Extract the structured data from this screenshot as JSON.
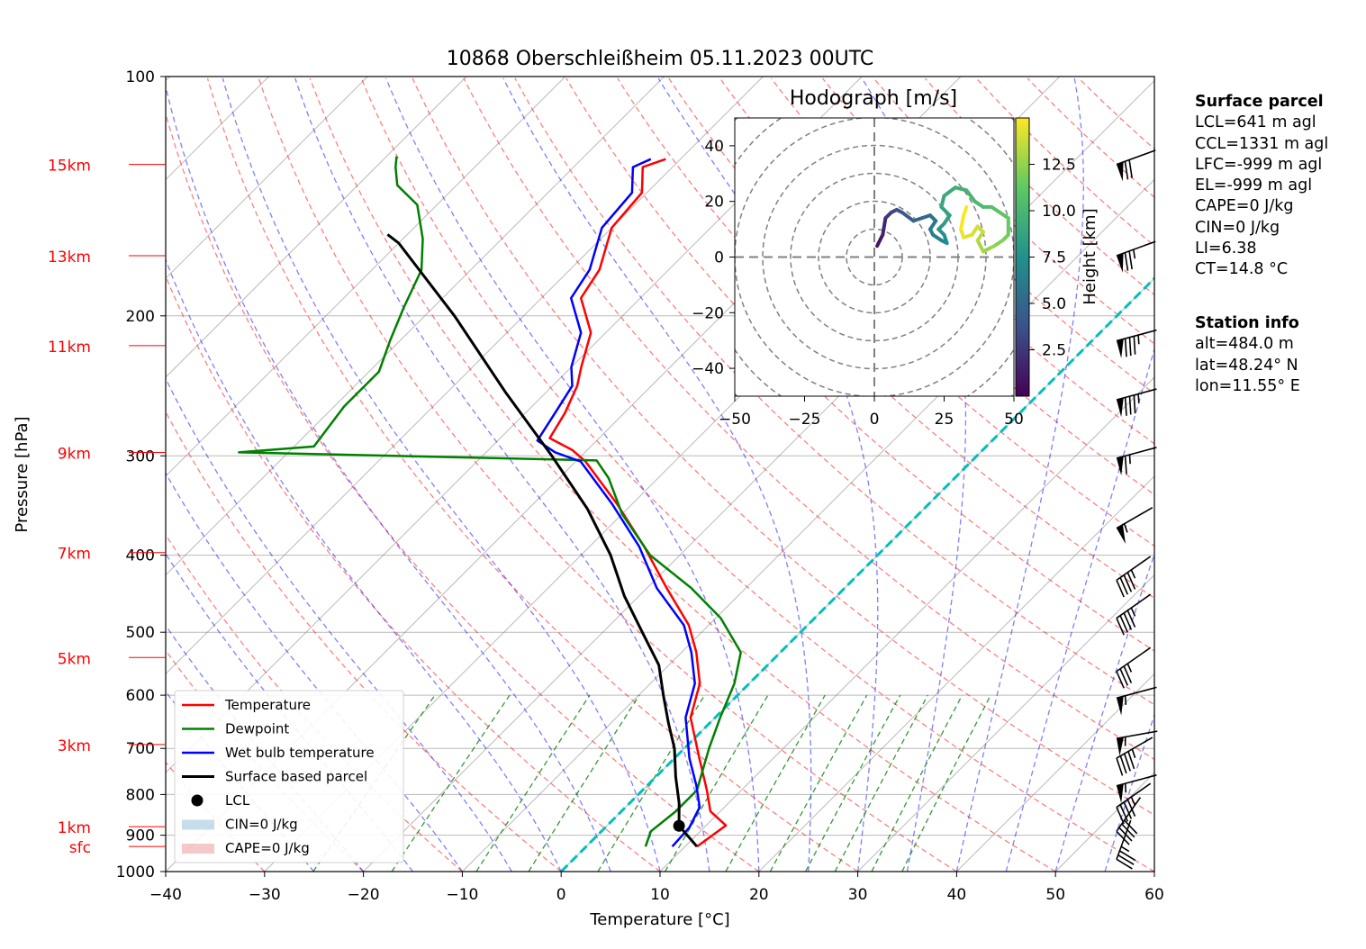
{
  "title": "10868 Oberschleißheim 05.11.2023 00UTC",
  "colors": {
    "temperature": "#ff0000",
    "dewpoint": "#008000",
    "wetbulb": "#0000ff",
    "parcel": "#000000",
    "dry_adiabat": "#ff0000",
    "moist_adiabat": "#0000ff",
    "mixing_ratio": "#008000",
    "isotherm": "#808080",
    "freezing": "#00bfbf",
    "height_label": "#ff0000"
  },
  "chart_data": [
    {
      "type": "line",
      "title": "10868 Oberschleißheim 05.11.2023 00UTC",
      "xlabel": "Temperature [°C]",
      "ylabel": "Pressure [hPa]",
      "xlim": [
        -40,
        60
      ],
      "ylim": [
        1000,
        100
      ],
      "y_scale": "log",
      "skew": true,
      "grid": true,
      "legend_position": "lower-left",
      "x_ticks": [
        "−40",
        "−30",
        "−20",
        "−10",
        "0",
        "10",
        "20",
        "30",
        "40",
        "50",
        "60"
      ],
      "y_ticks": [
        "100",
        "200",
        "300",
        "400",
        "500",
        "600",
        "700",
        "800",
        "900",
        "1000"
      ],
      "height_labels": [
        {
          "label": "15km",
          "p": 129
        },
        {
          "label": "13km",
          "p": 168
        },
        {
          "label": "11km",
          "p": 218
        },
        {
          "label": "9km",
          "p": 297
        },
        {
          "label": "7km",
          "p": 397
        },
        {
          "label": "5km",
          "p": 538
        },
        {
          "label": "3km",
          "p": 692
        },
        {
          "label": "1km",
          "p": 878
        },
        {
          "label": "sfc",
          "p": 930
        }
      ],
      "series": [
        {
          "name": "Temperature",
          "color": "#ff0000",
          "points": [
            [
              11.2,
              930
            ],
            [
              12,
              875
            ],
            [
              9,
              840
            ],
            [
              6.5,
              790
            ],
            [
              2.5,
              720
            ],
            [
              -2.5,
              640
            ],
            [
              -5,
              580
            ],
            [
              -8.5,
              530
            ],
            [
              -12,
              490
            ],
            [
              -18,
              440
            ],
            [
              -24.5,
              390
            ],
            [
              -31.5,
              345
            ],
            [
              -39,
              305
            ],
            [
              -41.5,
              295
            ],
            [
              -45,
              285
            ],
            [
              -46,
              265
            ],
            [
              -47.5,
              245
            ],
            [
              -49,
              232
            ],
            [
              -51.5,
              210
            ],
            [
              -56,
              190
            ],
            [
              -57,
              175
            ],
            [
              -60,
              155
            ],
            [
              -60.5,
              140
            ],
            [
              -63,
              130
            ],
            [
              -61.5,
              127
            ]
          ]
        },
        {
          "name": "Dewpoint",
          "color": "#008000",
          "points": [
            [
              6,
              930
            ],
            [
              5,
              890
            ],
            [
              5.5,
              840
            ],
            [
              5.5,
              790
            ],
            [
              2.5,
              700
            ],
            [
              0.5,
              640
            ],
            [
              -1.5,
              580
            ],
            [
              -4,
              530
            ],
            [
              -9.5,
              480
            ],
            [
              -15.5,
              440
            ],
            [
              -23,
              400
            ],
            [
              -30,
              355
            ],
            [
              -35,
              320
            ],
            [
              -38,
              304
            ],
            [
              -75,
              297
            ],
            [
              -68,
              292
            ],
            [
              -69,
              260
            ],
            [
              -69,
              235
            ],
            [
              -71,
              215
            ],
            [
              -73,
              195
            ],
            [
              -75,
              175
            ],
            [
              -78,
              160
            ],
            [
              -82,
              145
            ],
            [
              -86,
              137
            ],
            [
              -88,
              130
            ],
            [
              -89,
              126
            ]
          ]
        },
        {
          "name": "Wet bulb temperature",
          "color": "#0000ff",
          "points": [
            [
              8.7,
              930
            ],
            [
              8.5,
              880
            ],
            [
              7.5,
              830
            ],
            [
              5,
              780
            ],
            [
              1.5,
              720
            ],
            [
              -3,
              640
            ],
            [
              -5.5,
              580
            ],
            [
              -9,
              530
            ],
            [
              -12.5,
              490
            ],
            [
              -19,
              440
            ],
            [
              -25,
              390
            ],
            [
              -32,
              345
            ],
            [
              -39.5,
              305
            ],
            [
              -43,
              297
            ],
            [
              -46,
              287
            ],
            [
              -47,
              265
            ],
            [
              -48,
              245
            ],
            [
              -50,
              232
            ],
            [
              -52.5,
              210
            ],
            [
              -57,
              190
            ],
            [
              -58,
              175
            ],
            [
              -61,
              155
            ],
            [
              -61.5,
              140
            ],
            [
              -64,
              130
            ],
            [
              -63,
              127
            ]
          ]
        },
        {
          "name": "Surface based parcel",
          "color": "#000000",
          "points": [
            [
              11.2,
              930
            ],
            [
              7.3,
              876
            ],
            [
              5,
              820
            ],
            [
              2,
              760
            ],
            [
              -1,
              700
            ],
            [
              -4.2,
              650
            ],
            [
              -7.5,
              600
            ],
            [
              -11,
              550
            ],
            [
              -16,
              500
            ],
            [
              -21.5,
              450
            ],
            [
              -27,
              400
            ],
            [
              -34,
              350
            ],
            [
              -43,
              300
            ],
            [
              -54,
              250
            ],
            [
              -67,
              200
            ],
            [
              -80,
              162
            ],
            [
              -82,
              158
            ]
          ]
        }
      ],
      "lcl": {
        "t": 7.3,
        "p": 876,
        "label": "LCL"
      },
      "legend": [
        "Temperature",
        "Dewpoint",
        "Wet bulb temperature",
        "Surface based parcel",
        "LCL",
        "CIN=0 J/kg",
        "CAPE=0 J/kg"
      ],
      "wind_barbs": [
        {
          "p": 129,
          "speed_ms": 35,
          "dir_deg": 250
        },
        {
          "p": 168,
          "speed_ms": 38,
          "dir_deg": 250
        },
        {
          "p": 215,
          "speed_ms": 42,
          "dir_deg": 255
        },
        {
          "p": 255,
          "speed_ms": 42,
          "dir_deg": 255
        },
        {
          "p": 302,
          "speed_ms": 32,
          "dir_deg": 255
        },
        {
          "p": 370,
          "speed_ms": 28,
          "dir_deg": 240
        },
        {
          "p": 430,
          "speed_ms": 22,
          "dir_deg": 235
        },
        {
          "p": 480,
          "speed_ms": 22,
          "dir_deg": 235
        },
        {
          "p": 560,
          "speed_ms": 18,
          "dir_deg": 235
        },
        {
          "p": 605,
          "speed_ms": 28,
          "dir_deg": 255
        },
        {
          "p": 680,
          "speed_ms": 28,
          "dir_deg": 260
        },
        {
          "p": 720,
          "speed_ms": 22,
          "dir_deg": 240
        },
        {
          "p": 780,
          "speed_ms": 28,
          "dir_deg": 255
        },
        {
          "p": 830,
          "speed_ms": 22,
          "dir_deg": 235
        },
        {
          "p": 890,
          "speed_ms": 20,
          "dir_deg": 215
        },
        {
          "p": 965,
          "speed_ms": 18,
          "dir_deg": 200
        }
      ]
    },
    {
      "type": "line",
      "title": "Hodograph [m/s]",
      "xlim": [
        -50,
        50
      ],
      "ylim": [
        -50,
        50
      ],
      "x_ticks": [
        "−50",
        "−25",
        "0",
        "25",
        "50"
      ],
      "y_ticks": [
        "40",
        "20",
        "0",
        "−20",
        "−40"
      ],
      "colorbar": {
        "label": "Height [km]",
        "ticks": [
          "2.5",
          "5.0",
          "7.5",
          "10.0",
          "12.5"
        ],
        "range": [
          0,
          15
        ]
      },
      "points": [
        [
          1,
          4,
          0.3
        ],
        [
          3,
          8,
          1.0
        ],
        [
          4,
          14,
          1.8
        ],
        [
          6,
          16,
          2.5
        ],
        [
          8,
          17,
          3.2
        ],
        [
          10,
          16,
          3.8
        ],
        [
          14,
          13,
          4.2
        ],
        [
          17,
          14,
          4.8
        ],
        [
          20,
          15,
          5.2
        ],
        [
          22,
          13,
          5.6
        ],
        [
          20,
          10,
          6.0
        ],
        [
          21,
          8,
          6.2
        ],
        [
          24,
          6,
          6.5
        ],
        [
          26,
          5,
          6.8
        ],
        [
          25,
          8,
          7.2
        ],
        [
          23,
          10,
          7.6
        ],
        [
          25,
          12,
          8.0
        ],
        [
          27,
          15,
          8.3
        ],
        [
          24,
          18,
          8.6
        ],
        [
          25,
          22,
          8.9
        ],
        [
          29,
          25,
          9.2
        ],
        [
          33,
          24,
          9.5
        ],
        [
          36,
          20,
          9.8
        ],
        [
          39,
          18,
          10.1
        ],
        [
          42,
          18,
          10.4
        ],
        [
          45,
          16,
          10.7
        ],
        [
          48,
          14,
          11.0
        ],
        [
          48,
          8,
          11.4
        ],
        [
          46,
          6,
          11.8
        ],
        [
          43,
          4,
          12.2
        ],
        [
          39,
          2,
          12.6
        ],
        [
          37,
          6,
          13.0
        ],
        [
          39,
          9,
          13.4
        ],
        [
          37,
          11,
          13.7
        ],
        [
          35,
          8,
          14.0
        ],
        [
          32,
          7,
          14.3
        ],
        [
          31,
          10,
          14.6
        ],
        [
          32,
          15,
          14.9
        ],
        [
          33,
          18,
          15.0
        ]
      ]
    }
  ],
  "surface_parcel": {
    "heading": "Surface parcel",
    "lines": [
      "LCL=641 m agl",
      "CCL=1331 m agl",
      "LFC=-999 m agl",
      "EL=-999 m agl",
      "CAPE=0 J/kg",
      "CIN=0 J/kg",
      "LI=6.38",
      "CT=14.8 °C"
    ]
  },
  "station_info": {
    "heading": "Station info",
    "lines": [
      "alt=484.0 m",
      "lat=48.24° N",
      "lon=11.55° E"
    ]
  }
}
